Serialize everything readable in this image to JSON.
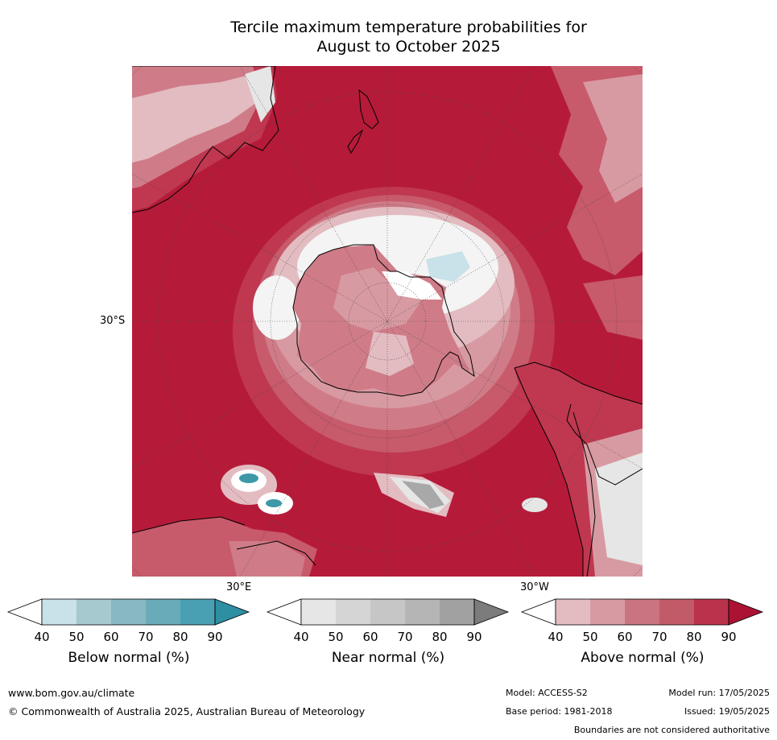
{
  "title_line1": "Tercile maximum temperature probabilities for",
  "title_line2": "August to October 2025",
  "map": {
    "projection": "south-polar-stereographic",
    "lat_label": "30°S",
    "lon_labels": [
      "30°E",
      "30°W"
    ],
    "colors": {
      "above_90": "#b51b39",
      "above_80": "#bf3850",
      "above_70": "#c75a6b",
      "above_60": "#cf7c88",
      "above_50": "#d89aa2",
      "above_40": "#e3bcc1",
      "below_40": "#c9e1e8",
      "below_80": "#3d98a8",
      "near_40": "#e6e6e6",
      "near_70": "#a8a8a8"
    }
  },
  "legend": [
    {
      "name": "below",
      "title": "Below normal (%)",
      "ticks": [
        "40",
        "50",
        "60",
        "70",
        "80",
        "90"
      ],
      "colors": [
        "#ffffff",
        "#c9e1e8",
        "#a6c8cf",
        "#88b8c3",
        "#6aabb9",
        "#4aa0b3",
        "#2e8ea2"
      ]
    },
    {
      "name": "near",
      "title": "Near normal (%)",
      "ticks": [
        "40",
        "50",
        "60",
        "70",
        "80",
        "90"
      ],
      "colors": [
        "#ffffff",
        "#e6e6e6",
        "#d5d5d5",
        "#c6c6c6",
        "#b5b5b5",
        "#a1a1a1",
        "#7c7c7c"
      ]
    },
    {
      "name": "above",
      "title": "Above normal (%)",
      "ticks": [
        "40",
        "50",
        "60",
        "70",
        "80",
        "90"
      ],
      "colors": [
        "#ffffff",
        "#e3bcc1",
        "#d89aa2",
        "#c97480",
        "#c25b68",
        "#bb324c",
        "#ab1233"
      ]
    }
  ],
  "footer": {
    "website": "www.bom.gov.au/climate",
    "copyright": "© Commonwealth of Australia 2025, Australian Bureau of Meteorology",
    "model": "Model: ACCESS-S2",
    "base_period": "Base period: 1981-2018",
    "model_run": "Model run: 17/05/2025",
    "issued": "Issued: 19/05/2025",
    "disclaimer": "Boundaries are not considered authoritative"
  }
}
